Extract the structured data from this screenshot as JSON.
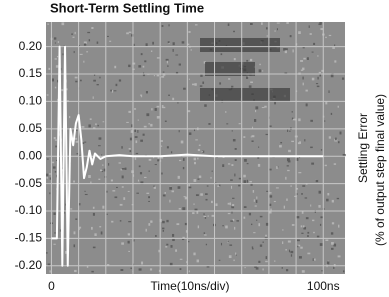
{
  "chart_data": {
    "type": "line",
    "title": "Short-Term Settling Time",
    "x_label": "Time(10ns/div)",
    "y_label": "Settling Error",
    "y_label_sub": "(% of output step final value)",
    "x": [
      0,
      2,
      3,
      4,
      5,
      6,
      7,
      8,
      9,
      10,
      11,
      12,
      13,
      14,
      15,
      16,
      18,
      20,
      25,
      30,
      40,
      50,
      60,
      70,
      80,
      90,
      100
    ],
    "series": [
      {
        "color": "#ffffff",
        "values": [
          -0.15,
          -0.15,
          0.2,
          -0.2,
          0.2,
          -0.2,
          0.05,
          0.02,
          0.06,
          0.075,
          0.03,
          -0.04,
          -0.02,
          0.01,
          -0.015,
          0.005,
          -0.005,
          0,
          0.002,
          0,
          0,
          0.003,
          0,
          0,
          0,
          0,
          0
        ]
      }
    ],
    "xlim": [
      -2,
      108
    ],
    "ylim": [
      -0.215,
      0.245
    ],
    "xticks": [
      {
        "value": 0,
        "label": "0"
      },
      {
        "value": 100,
        "label": "100ns"
      }
    ],
    "yticks": [
      {
        "value": 0.2,
        "label": "0.20"
      },
      {
        "value": 0.15,
        "label": "0.15"
      },
      {
        "value": 0.1,
        "label": "0.10"
      },
      {
        "value": 0.05,
        "label": "0.05"
      },
      {
        "value": 0,
        "label": "0.00"
      },
      {
        "value": -0.05,
        "label": "-0.05"
      },
      {
        "value": -0.1,
        "label": "-0.10"
      },
      {
        "value": -0.15,
        "label": "-0.15"
      },
      {
        "value": -0.2,
        "label": "-0.20"
      }
    ],
    "xgrid": [
      0,
      10,
      20,
      30,
      40,
      50,
      60,
      70,
      80,
      90,
      100
    ],
    "grid": true,
    "background": "#8c8c8c",
    "grid_color": "#c8c8c8"
  }
}
